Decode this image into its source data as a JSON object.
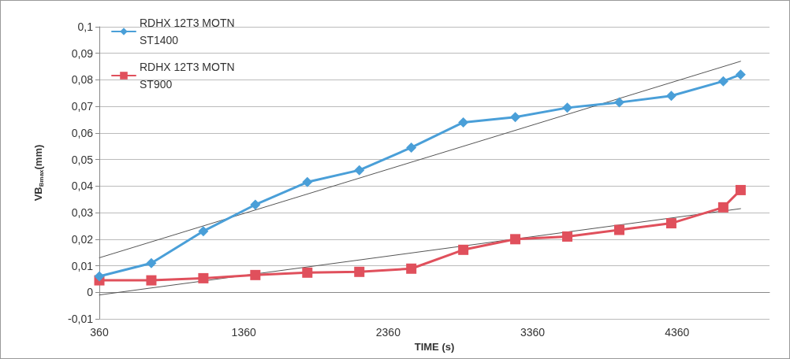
{
  "chart_data": {
    "type": "line",
    "xlabel": "TIME (s)",
    "ylabel": "VB$_{Bmax}$(mm)",
    "xlim": [
      360,
      5000
    ],
    "xticks": [
      360,
      1360,
      2360,
      3360,
      4360
    ],
    "ylim": [
      -0.01,
      0.1
    ],
    "yticks": [
      {
        "value": -0.01,
        "label": "-0,01"
      },
      {
        "value": 0,
        "label": "0"
      },
      {
        "value": 0.01,
        "label": "0,01"
      },
      {
        "value": 0.02,
        "label": "0,02"
      },
      {
        "value": 0.03,
        "label": "0,03"
      },
      {
        "value": 0.04,
        "label": "0,04"
      },
      {
        "value": 0.05,
        "label": "0,05"
      },
      {
        "value": 0.06,
        "label": "0,06"
      },
      {
        "value": 0.07,
        "label": "0,07"
      },
      {
        "value": 0.08,
        "label": "0,08"
      },
      {
        "value": 0.09,
        "label": "0,09"
      },
      {
        "value": 0.1,
        "label": "0,1"
      }
    ],
    "grid": "y",
    "legend": "top left",
    "series": [
      {
        "name": "RDHX 12T3 MOTN ST1400",
        "color": "#4a9fd8",
        "marker": "diamond",
        "x": [
          360,
          720,
          1080,
          1440,
          1800,
          2160,
          2520,
          2880,
          3240,
          3600,
          3960,
          4320,
          4680,
          4800
        ],
        "values": [
          0.006,
          0.011,
          0.023,
          0.033,
          0.0415,
          0.046,
          0.0545,
          0.064,
          0.066,
          0.0695,
          0.0715,
          0.074,
          0.0795,
          0.082
        ]
      },
      {
        "name": "RDHX 12T3 MOTN ST900",
        "color": "#e0505c",
        "marker": "square",
        "x": [
          360,
          720,
          1080,
          1440,
          1800,
          2160,
          2520,
          2880,
          3240,
          3600,
          3960,
          4320,
          4680,
          4800
        ],
        "values": [
          0.0045,
          0.0045,
          0.0053,
          0.0065,
          0.0074,
          0.0077,
          0.0089,
          0.016,
          0.02,
          0.021,
          0.0235,
          0.026,
          0.032,
          0.0385
        ]
      },
      {
        "type": "line",
        "color": "#555555",
        "marker": "none",
        "x": [
          360,
          4800
        ],
        "values": [
          0.013,
          0.087
        ]
      },
      {
        "type": "line",
        "color": "#555555",
        "marker": "none",
        "x": [
          360,
          4800
        ],
        "values": [
          -0.001,
          0.0315
        ]
      }
    ]
  }
}
